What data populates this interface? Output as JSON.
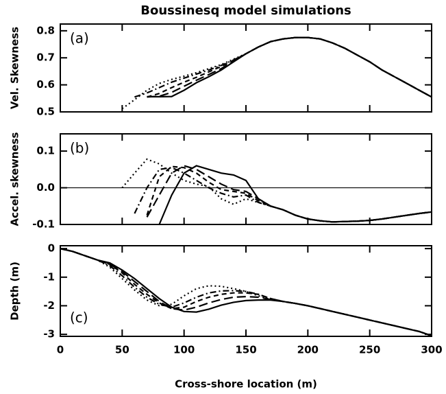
{
  "chart_data": [
    {
      "type": "line",
      "title": "Boussinesq model simulations",
      "panel_label": "(a)",
      "ylabel": "Vel. Skewness",
      "x": [
        50,
        60,
        70,
        80,
        90,
        100,
        110,
        120,
        130,
        140,
        150,
        160,
        170,
        180,
        190,
        200,
        210,
        220,
        230,
        240,
        250,
        260,
        270,
        280,
        290,
        300
      ],
      "xlim": [
        0,
        300
      ],
      "xticks": [
        0,
        50,
        100,
        150,
        200,
        250,
        300
      ],
      "show_xtick_labels": false,
      "ylim": [
        0.5,
        0.825
      ],
      "yticks": [
        0.5,
        0.6,
        0.7,
        0.8
      ],
      "series": [
        {
          "color": "#000000",
          "dash": "dotted",
          "values": [
            0.512,
            0.545,
            0.58,
            0.605,
            0.62,
            0.632,
            0.645,
            0.66,
            0.675,
            0.695,
            0.715,
            0.74,
            0.76,
            0.77,
            0.775,
            0.775,
            0.77,
            0.755,
            0.735,
            0.71,
            0.685,
            0.655,
            0.63,
            0.605,
            0.58,
            0.555
          ]
        },
        {
          "color": "#000000",
          "dash": "dashdot",
          "values": [
            null,
            0.555,
            0.57,
            0.59,
            0.61,
            0.625,
            0.64,
            0.655,
            0.672,
            0.692,
            0.715,
            0.74,
            0.76,
            0.77,
            0.775,
            0.775,
            0.77,
            0.755,
            0.735,
            0.71,
            0.685,
            0.655,
            0.63,
            0.605,
            0.58,
            0.555
          ]
        },
        {
          "color": "#000000",
          "dash": "dashed",
          "values": [
            null,
            null,
            0.555,
            0.568,
            0.59,
            0.61,
            0.628,
            0.648,
            0.668,
            0.69,
            0.715,
            0.74,
            0.76,
            0.77,
            0.775,
            0.775,
            0.77,
            0.755,
            0.735,
            0.71,
            0.685,
            0.655,
            0.63,
            0.605,
            0.58,
            0.555
          ]
        },
        {
          "color": "#000000",
          "dash": "longdash",
          "values": [
            null,
            null,
            0.555,
            0.558,
            0.572,
            0.595,
            0.617,
            0.638,
            0.66,
            0.687,
            0.715,
            0.74,
            0.76,
            0.77,
            0.775,
            0.775,
            0.77,
            0.755,
            0.735,
            0.71,
            0.685,
            0.655,
            0.63,
            0.605,
            0.58,
            0.555
          ]
        },
        {
          "color": "#000000",
          "dash": "solid",
          "values": [
            null,
            null,
            0.556,
            0.556,
            0.557,
            0.58,
            0.608,
            0.63,
            0.655,
            0.685,
            0.715,
            0.74,
            0.76,
            0.77,
            0.775,
            0.775,
            0.77,
            0.755,
            0.735,
            0.71,
            0.685,
            0.655,
            0.63,
            0.605,
            0.58,
            0.555
          ]
        }
      ]
    },
    {
      "type": "line",
      "panel_label": "(b)",
      "ylabel": "Accel. skewness",
      "x": [
        50,
        60,
        70,
        80,
        90,
        100,
        110,
        120,
        130,
        140,
        150,
        160,
        170,
        180,
        190,
        200,
        210,
        220,
        230,
        240,
        250,
        260,
        270,
        280,
        290,
        300
      ],
      "xlim": [
        0,
        300
      ],
      "xticks": [
        0,
        50,
        100,
        150,
        200,
        250,
        300
      ],
      "show_xtick_labels": false,
      "ylim": [
        -0.1,
        0.147
      ],
      "yticks": [
        {
          "value": 0.1,
          "label": "0.1"
        },
        {
          "value": 0,
          "label": "0.0"
        },
        {
          "value": -0.1,
          "label": "-0.1"
        }
      ],
      "reference_line": 0,
      "series": [
        {
          "color": "#000000",
          "dash": "dotted",
          "values": [
            0.0,
            0.04,
            0.078,
            0.065,
            0.04,
            0.02,
            0.01,
            0.003,
            -0.03,
            -0.045,
            -0.03,
            -0.04,
            -0.05,
            -0.06,
            -0.075,
            -0.085,
            -0.09,
            -0.093,
            -0.092,
            -0.091,
            -0.089,
            -0.085,
            -0.08,
            -0.075,
            -0.07,
            -0.066
          ]
        },
        {
          "color": "#000000",
          "dash": "dashdot",
          "values": [
            null,
            -0.07,
            0.0,
            0.05,
            0.055,
            0.04,
            0.02,
            0.0,
            -0.015,
            -0.025,
            -0.02,
            -0.04,
            -0.05,
            -0.06,
            -0.075,
            -0.085,
            -0.09,
            -0.093,
            -0.092,
            -0.091,
            -0.089,
            -0.085,
            -0.08,
            -0.075,
            -0.07,
            -0.066
          ]
        },
        {
          "color": "#000000",
          "dash": "dashed",
          "values": [
            null,
            null,
            -0.075,
            0.03,
            0.058,
            0.055,
            0.04,
            0.015,
            -0.005,
            -0.01,
            -0.015,
            -0.035,
            -0.05,
            -0.06,
            -0.075,
            -0.085,
            -0.09,
            -0.093,
            -0.092,
            -0.091,
            -0.089,
            -0.085,
            -0.08,
            -0.075,
            -0.07,
            -0.066
          ]
        },
        {
          "color": "#000000",
          "dash": "longdash",
          "values": [
            null,
            null,
            -0.08,
            -0.02,
            0.04,
            0.06,
            0.05,
            0.03,
            0.01,
            -0.005,
            -0.01,
            -0.03,
            -0.05,
            -0.06,
            -0.075,
            -0.085,
            -0.09,
            -0.093,
            -0.092,
            -0.091,
            -0.089,
            -0.085,
            -0.08,
            -0.075,
            -0.07,
            -0.066
          ]
        },
        {
          "color": "#000000",
          "dash": "solid",
          "values": [
            null,
            null,
            null,
            -0.1,
            -0.02,
            0.04,
            0.06,
            0.05,
            0.04,
            0.035,
            0.02,
            -0.03,
            -0.05,
            -0.06,
            -0.075,
            -0.085,
            -0.09,
            -0.093,
            -0.092,
            -0.091,
            -0.089,
            -0.085,
            -0.08,
            -0.075,
            -0.07,
            -0.066
          ]
        }
      ]
    },
    {
      "type": "line",
      "panel_label": "(c)",
      "ylabel": "Depth (m)",
      "xlabel": "Cross-shore location (m)",
      "x": [
        0,
        10,
        20,
        30,
        40,
        50,
        60,
        70,
        80,
        90,
        100,
        110,
        120,
        130,
        140,
        150,
        160,
        170,
        180,
        190,
        200,
        210,
        220,
        230,
        240,
        250,
        260,
        270,
        280,
        290,
        300
      ],
      "xlim": [
        0,
        300
      ],
      "xticks": [
        0,
        50,
        100,
        150,
        200,
        250,
        300
      ],
      "show_xtick_labels": true,
      "ylim": [
        -3.07,
        0.1
      ],
      "yticks": [
        0,
        -1,
        -2,
        -3
      ],
      "series": [
        {
          "color": "#000000",
          "dash": "dotted",
          "values": [
            0,
            -0.1,
            -0.25,
            -0.4,
            -0.65,
            -1.05,
            -1.45,
            -1.8,
            -2.0,
            -1.95,
            -1.65,
            -1.4,
            -1.3,
            -1.32,
            -1.4,
            -1.5,
            -1.65,
            -1.78,
            -1.85,
            -1.92,
            -2.0,
            -2.1,
            -2.2,
            -2.3,
            -2.4,
            -2.5,
            -2.6,
            -2.7,
            -2.8,
            -2.9,
            -3.05
          ]
        },
        {
          "color": "#000000",
          "dash": "dashdot",
          "values": [
            0,
            -0.1,
            -0.25,
            -0.4,
            -0.6,
            -0.95,
            -1.35,
            -1.7,
            -1.95,
            -2.05,
            -1.9,
            -1.7,
            -1.55,
            -1.48,
            -1.47,
            -1.5,
            -1.6,
            -1.75,
            -1.85,
            -1.92,
            -2.0,
            -2.1,
            -2.2,
            -2.3,
            -2.4,
            -2.5,
            -2.6,
            -2.7,
            -2.8,
            -2.9,
            -3.05
          ]
        },
        {
          "color": "#000000",
          "dash": "dashed",
          "values": [
            0,
            -0.1,
            -0.25,
            -0.4,
            -0.55,
            -0.85,
            -1.25,
            -1.6,
            -1.9,
            -2.1,
            -2.05,
            -1.85,
            -1.7,
            -1.6,
            -1.55,
            -1.55,
            -1.6,
            -1.75,
            -1.85,
            -1.92,
            -2.0,
            -2.1,
            -2.2,
            -2.3,
            -2.4,
            -2.5,
            -2.6,
            -2.7,
            -2.8,
            -2.9,
            -3.05
          ]
        },
        {
          "color": "#000000",
          "dash": "longdash",
          "values": [
            0,
            -0.1,
            -0.25,
            -0.4,
            -0.55,
            -0.8,
            -1.15,
            -1.5,
            -1.85,
            -2.1,
            -2.15,
            -2.05,
            -1.9,
            -1.78,
            -1.7,
            -1.68,
            -1.7,
            -1.78,
            -1.85,
            -1.92,
            -2.0,
            -2.1,
            -2.2,
            -2.3,
            -2.4,
            -2.5,
            -2.6,
            -2.7,
            -2.8,
            -2.9,
            -3.05
          ]
        },
        {
          "color": "#000000",
          "dash": "solid",
          "values": [
            0,
            -0.1,
            -0.25,
            -0.4,
            -0.5,
            -0.75,
            -1.05,
            -1.4,
            -1.75,
            -2.05,
            -2.2,
            -2.22,
            -2.12,
            -1.98,
            -1.88,
            -1.82,
            -1.8,
            -1.8,
            -1.85,
            -1.92,
            -2.0,
            -2.1,
            -2.2,
            -2.3,
            -2.4,
            -2.5,
            -2.6,
            -2.7,
            -2.8,
            -2.9,
            -3.05
          ]
        }
      ]
    }
  ]
}
